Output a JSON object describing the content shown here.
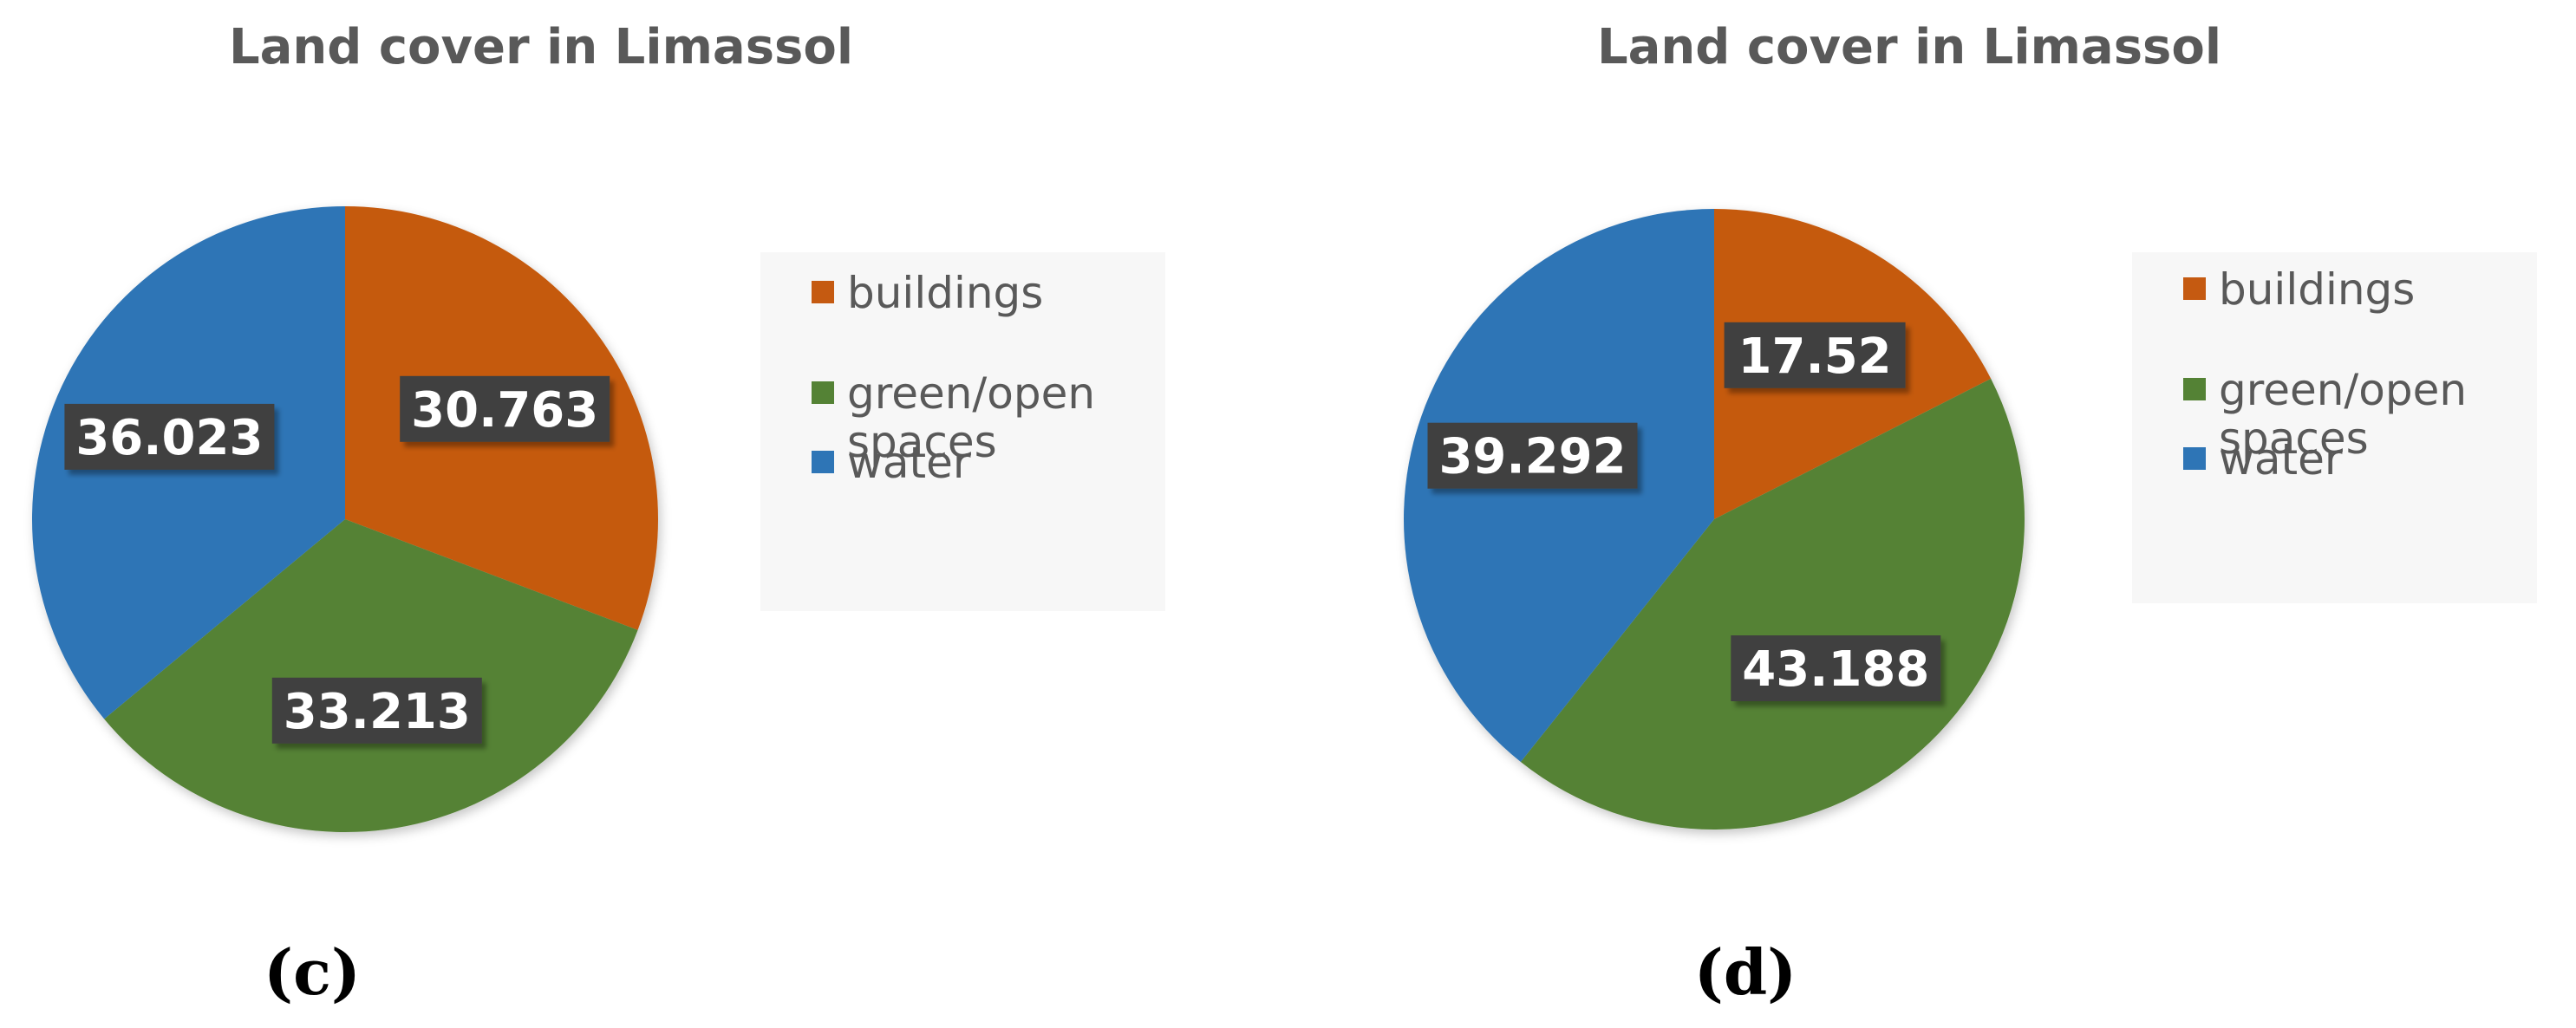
{
  "chart_data": [
    {
      "type": "pie",
      "title": "Land cover in Limassol",
      "panel_label": "(c)",
      "categories": [
        "buildings",
        "green/open spaces",
        "water"
      ],
      "values": [
        30.763,
        33.213,
        36.023
      ],
      "value_labels": [
        "30.763",
        "33.213",
        "36.023"
      ],
      "colors": [
        "#C55A11",
        "#548235",
        "#2E75B6"
      ],
      "legend_lines": [
        [
          "buildings"
        ],
        [
          "green/open",
          "spaces"
        ],
        [
          "water"
        ]
      ],
      "legend_position": "right",
      "start": "12 o'clock, clockwise"
    },
    {
      "type": "pie",
      "title": "Land cover in Limassol",
      "panel_label": "(d)",
      "categories": [
        "buildings",
        "green/open spaces",
        "water"
      ],
      "values": [
        17.52,
        43.188,
        39.292
      ],
      "value_labels": [
        "17.52",
        "43.188",
        "39.292"
      ],
      "colors": [
        "#C55A11",
        "#548235",
        "#2E75B6"
      ],
      "legend_lines": [
        [
          "buildings"
        ],
        [
          "green/open",
          "spaces"
        ],
        [
          "water"
        ]
      ],
      "legend_position": "right",
      "start": "12 o'clock, clockwise"
    }
  ]
}
